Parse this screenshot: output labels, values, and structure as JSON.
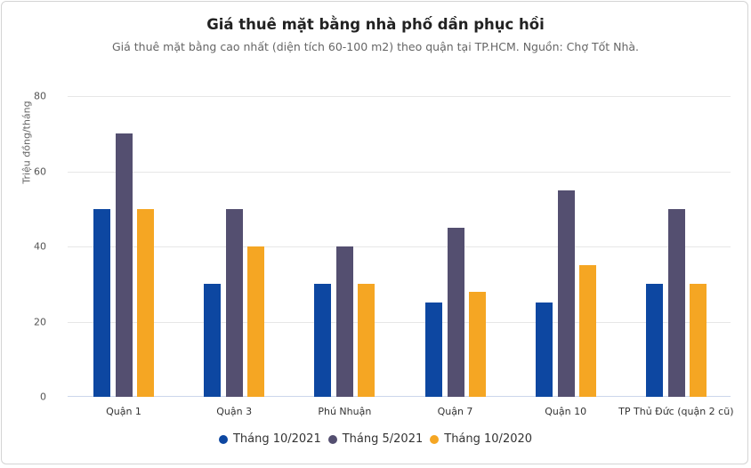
{
  "header": {
    "title": "Giá thuê mặt bằng nhà phố dần phục hồi",
    "subtitle": "Giá thuê mặt bằng cao nhất (diện tích 60-100 m2) theo quận tại TP.HCM. Nguồn: Chợ Tốt Nhà."
  },
  "colors": {
    "series_0": "#0d47a1",
    "series_1": "#544f70",
    "series_2": "#f5a623"
  },
  "chart_data": {
    "type": "bar",
    "title": "Giá thuê mặt bằng nhà phố dần phục hồi",
    "subtitle": "Giá thuê mặt bằng cao nhất (diện tích 60-100 m2) theo quận tại TP.HCM. Nguồn: Chợ Tốt Nhà.",
    "xlabel": "",
    "ylabel": "Triệu đồng/tháng",
    "ylim": [
      0,
      80
    ],
    "yticks": [
      "0",
      "20",
      "40",
      "60",
      "80"
    ],
    "grid": true,
    "legend_position": "bottom",
    "categories": [
      "Quận 1",
      "Quận 3",
      "Phú Nhuận",
      "Quận 7",
      "Quận 10",
      "TP Thủ Đức (quận 2 cũ)"
    ],
    "series": [
      {
        "name": "Tháng 10/2021",
        "color": "#0d47a1",
        "values": [
          50,
          30,
          30,
          25,
          25,
          30
        ]
      },
      {
        "name": "Tháng 5/2021",
        "color": "#544f70",
        "values": [
          70,
          50,
          40,
          45,
          55,
          50
        ]
      },
      {
        "name": "Tháng 10/2020",
        "color": "#f5a623",
        "values": [
          50,
          40,
          30,
          28,
          35,
          30
        ]
      }
    ]
  }
}
